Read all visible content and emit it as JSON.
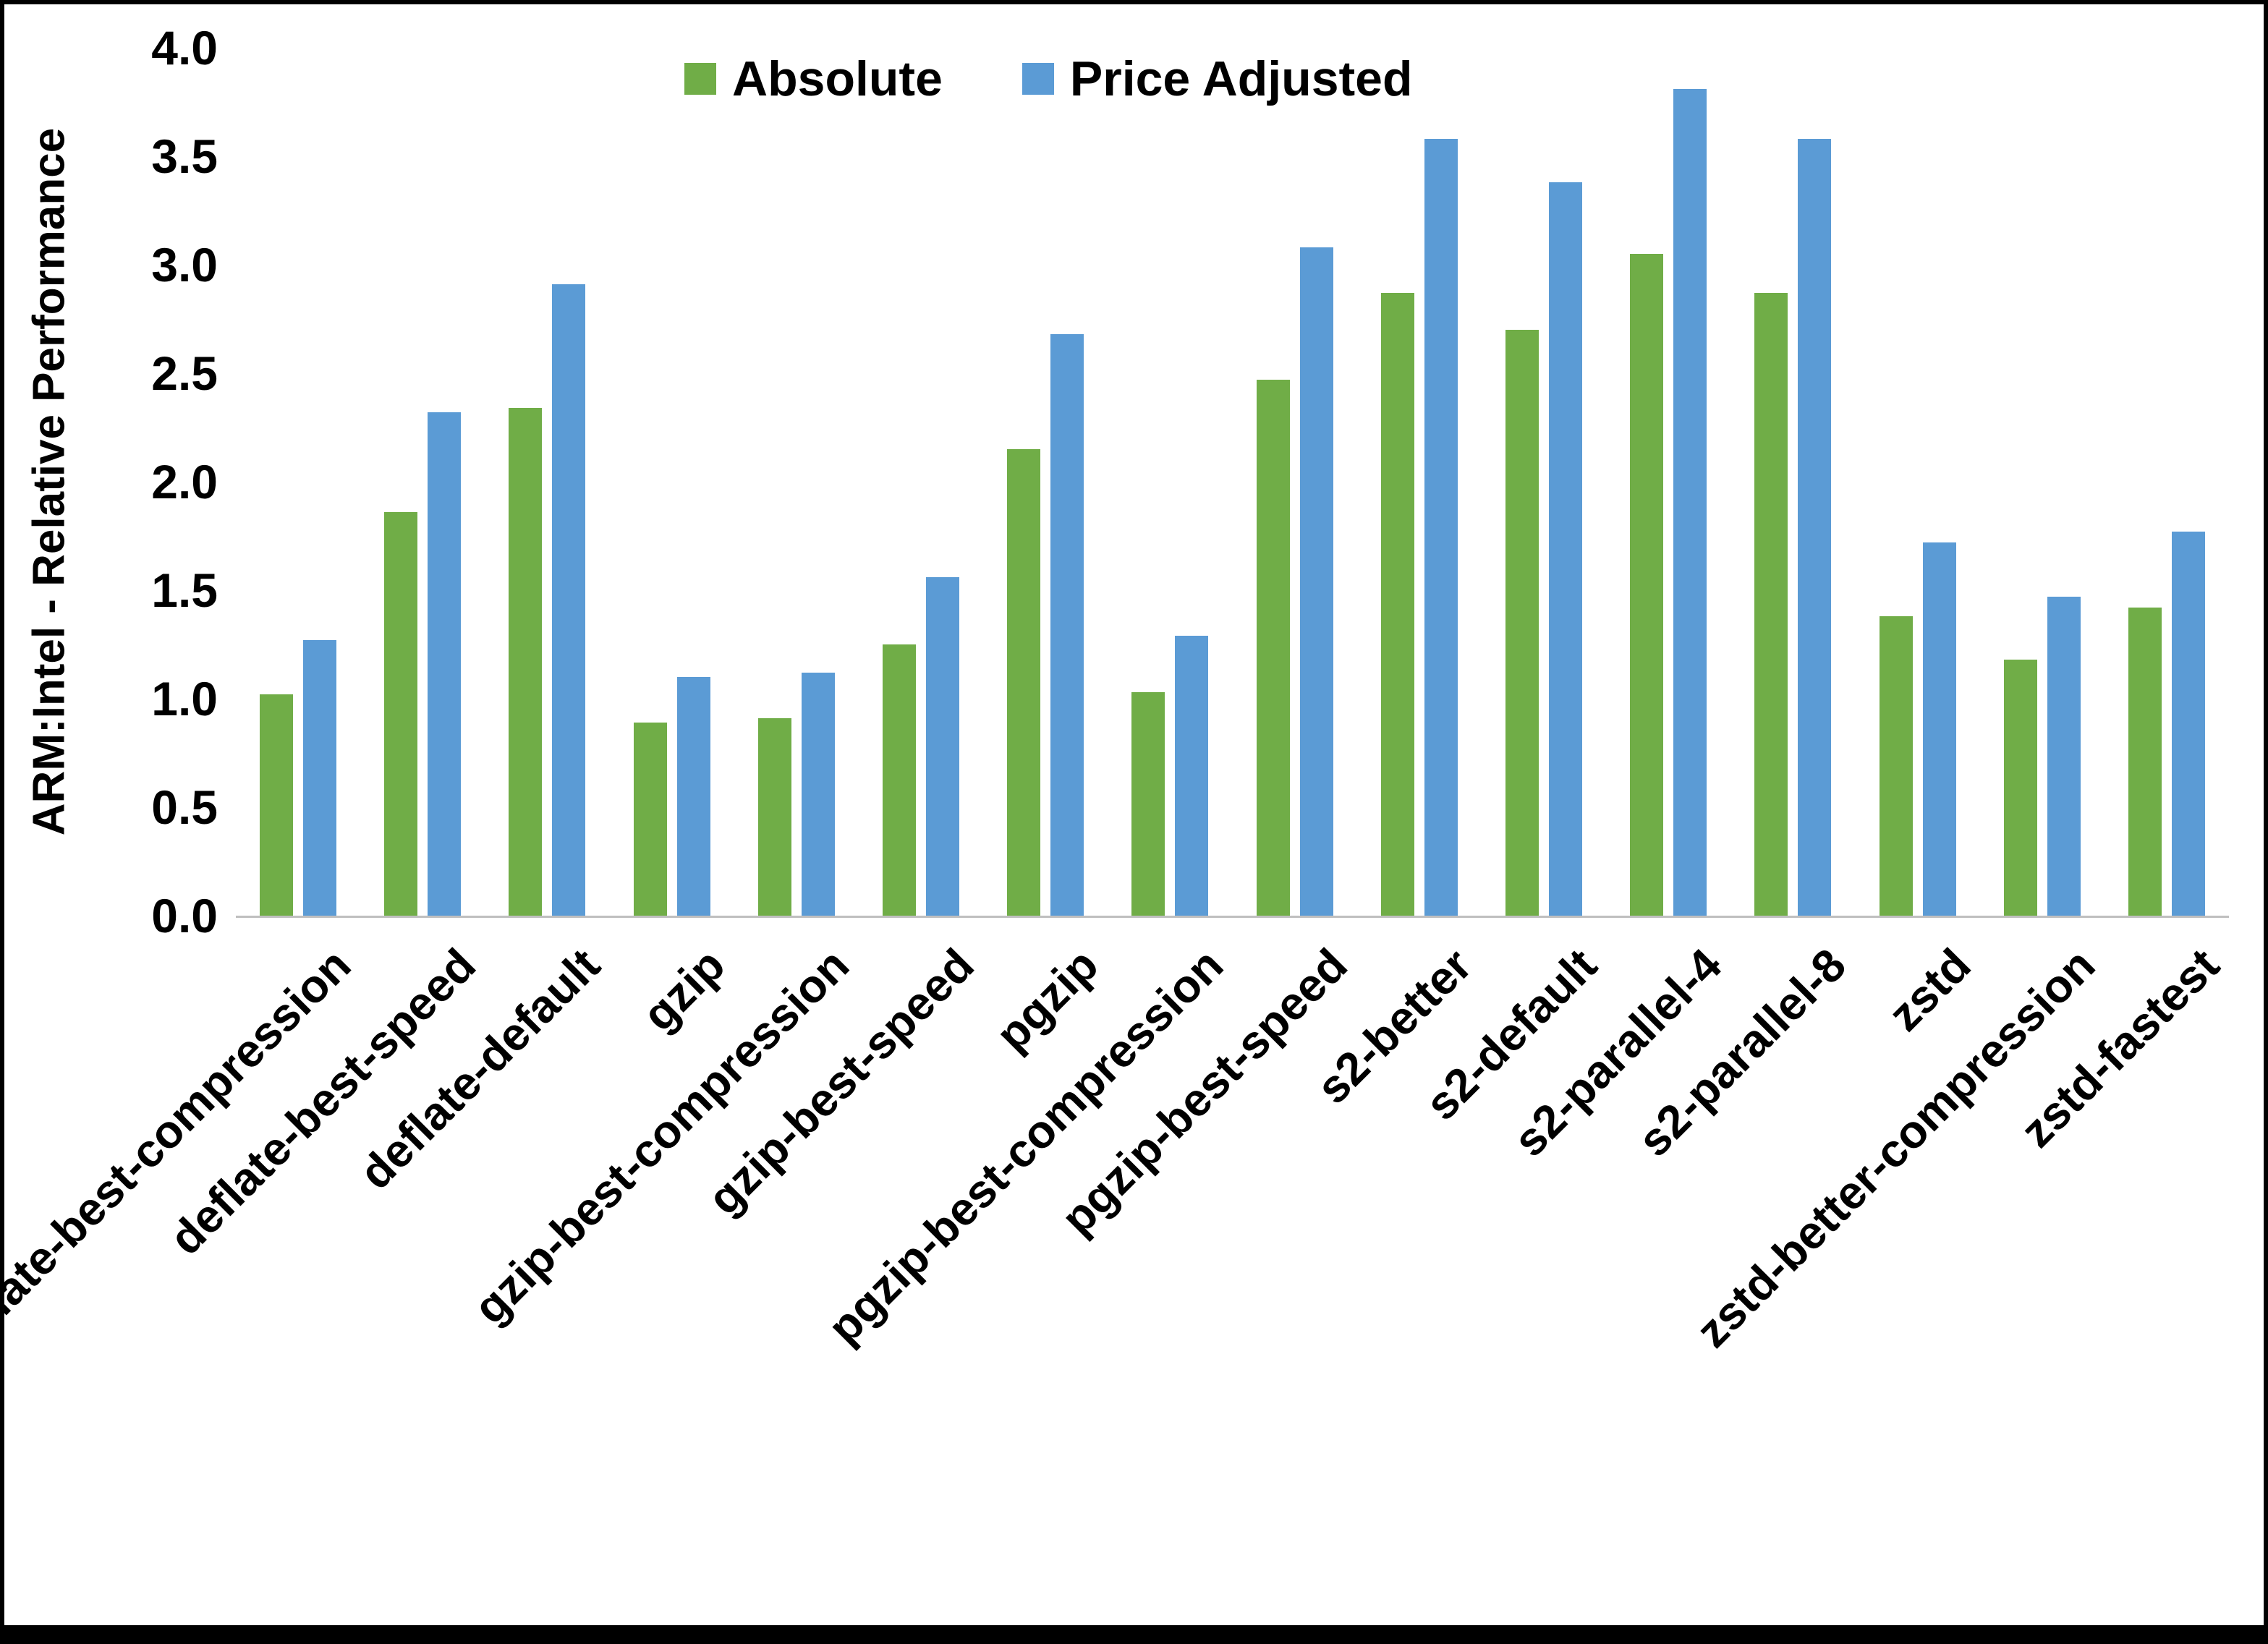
{
  "chart_data": {
    "type": "bar",
    "title": "",
    "xlabel": "",
    "ylabel": "ARM:Intel - Relative Performance",
    "ylim": [
      0,
      4.0
    ],
    "ytick_step": 0.5,
    "yticks": [
      "0.0",
      "0.5",
      "1.0",
      "1.5",
      "2.0",
      "2.5",
      "3.0",
      "3.5",
      "4.0"
    ],
    "grid": false,
    "legend_position": "top-center",
    "axis_line_color": "#BFBFBF",
    "text_color": "#000000",
    "categories": [
      "deflate-best-compression",
      "deflate-best-speed",
      "deflate-default",
      "gzip",
      "gzip-best-compression",
      "gzip-best-speed",
      "pgzip",
      "pgzip-best-compression",
      "pgzip-best-speed",
      "s2-better",
      "s2-default",
      "s2-parallel-4",
      "s2-parallel-8",
      "zstd",
      "zstd-better-compression",
      "zstd-fastest"
    ],
    "series": [
      {
        "name": "Absolute",
        "color": "#70AD47",
        "values": [
          1.02,
          1.86,
          2.34,
          0.89,
          0.91,
          1.25,
          2.15,
          1.03,
          2.47,
          2.87,
          2.7,
          3.05,
          2.87,
          1.38,
          1.18,
          1.42
        ]
      },
      {
        "name": "Price Adjusted",
        "color": "#5B9BD5",
        "values": [
          1.27,
          2.32,
          2.91,
          1.1,
          1.12,
          1.56,
          2.68,
          1.29,
          3.08,
          3.58,
          3.38,
          3.81,
          3.58,
          1.72,
          1.47,
          1.77
        ]
      }
    ]
  }
}
